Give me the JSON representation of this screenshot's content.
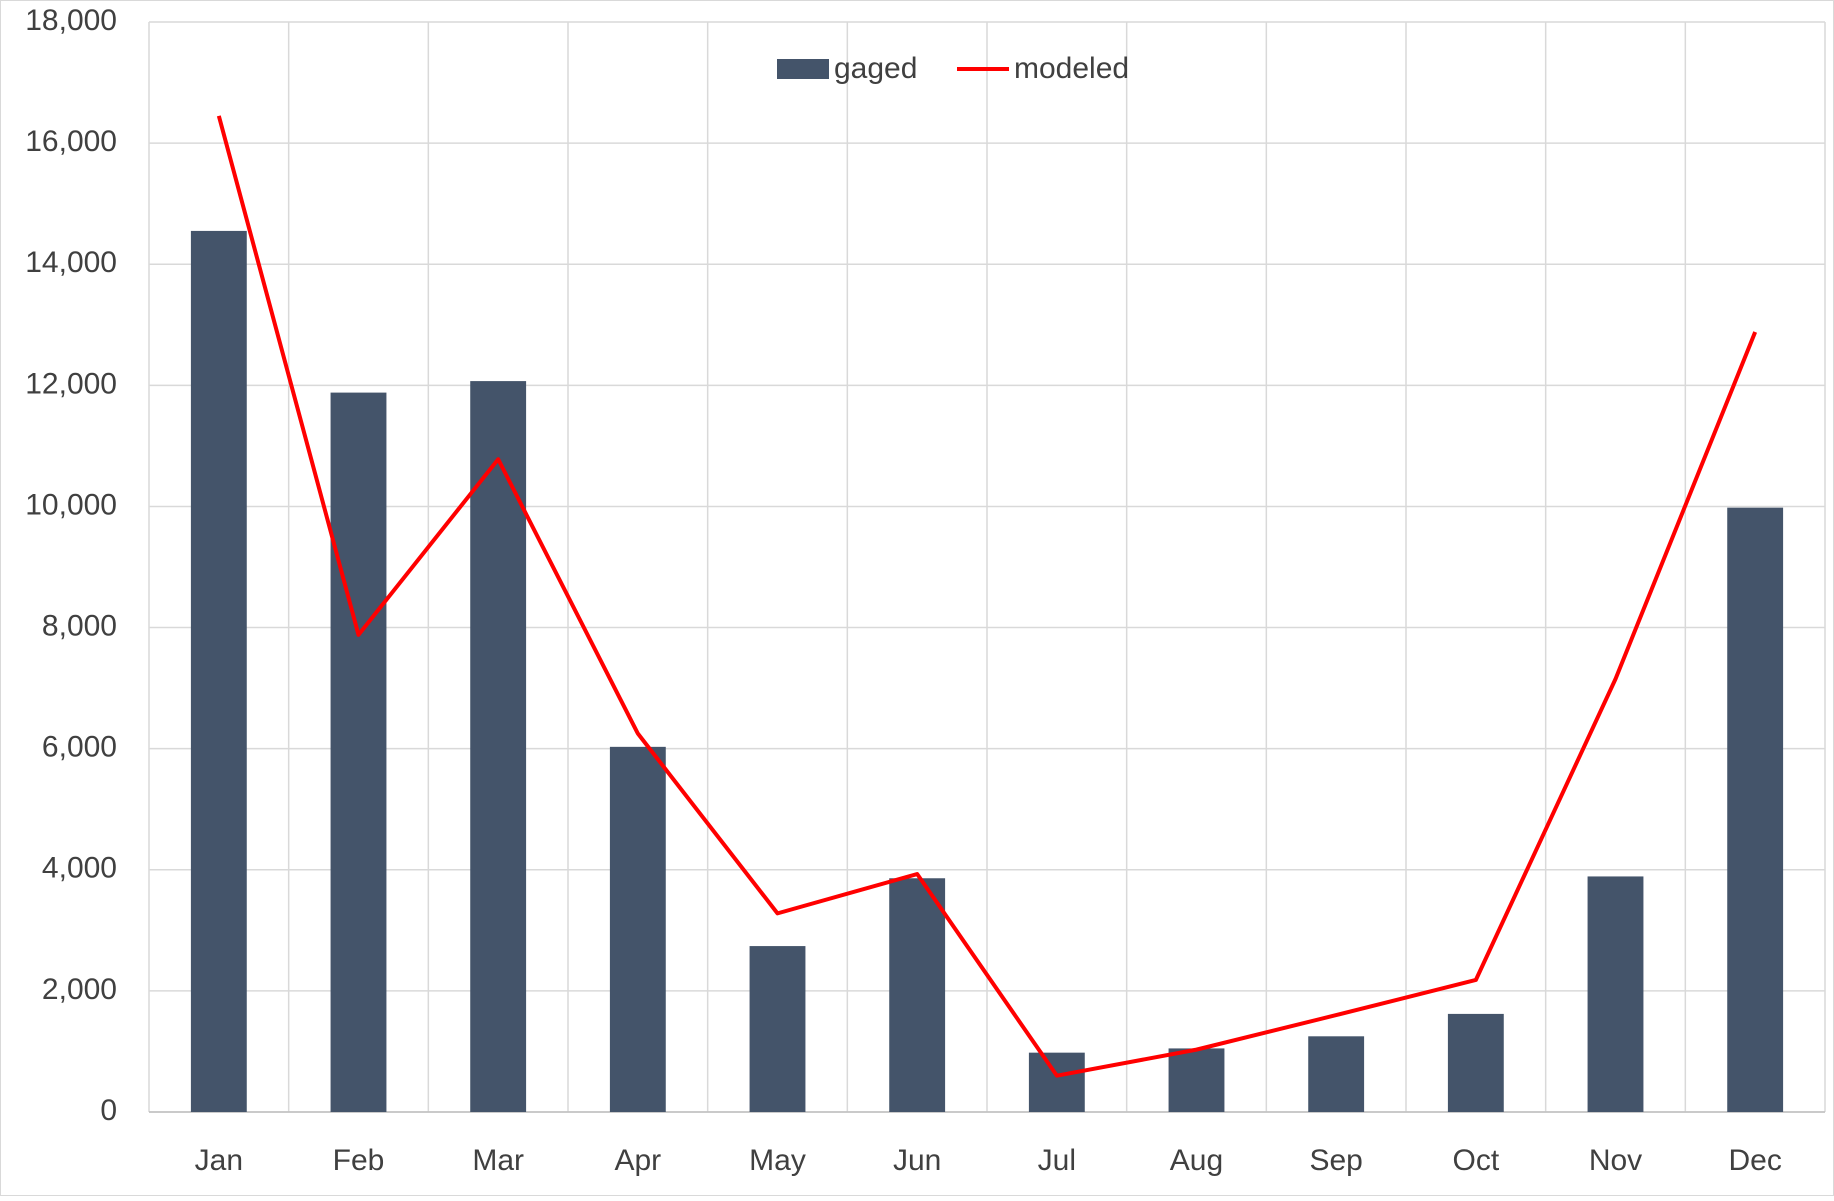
{
  "chart_data": {
    "type": "bar_line",
    "categories": [
      "Jan",
      "Feb",
      "Mar",
      "Apr",
      "May",
      "Jun",
      "Jul",
      "Aug",
      "Sep",
      "Oct",
      "Nov",
      "Dec"
    ],
    "series": [
      {
        "name": "gaged",
        "type": "bar",
        "color": "#44546a",
        "values": [
          14550,
          11880,
          12070,
          6030,
          2740,
          3860,
          980,
          1050,
          1250,
          1620,
          3890,
          9980
        ]
      },
      {
        "name": "modeled",
        "type": "line",
        "color": "#ff0000",
        "values": [
          16450,
          7880,
          10780,
          6250,
          3280,
          3930,
          600,
          1030,
          1600,
          2180,
          7150,
          12880
        ]
      }
    ],
    "ylim": [
      0,
      18000
    ],
    "yticks": [
      0,
      {
        "value": 2000,
        "label": "2,000"
      },
      {
        "value": 4000,
        "label": "4,000"
      },
      {
        "value": 6000,
        "label": "6,000"
      },
      {
        "value": 8000,
        "label": "8,000"
      },
      {
        "value": 10000,
        "label": "10,000"
      },
      {
        "value": 12000,
        "label": "12,000"
      },
      {
        "value": 14000,
        "label": "14,000"
      },
      {
        "value": 16000,
        "label": "16,000"
      },
      {
        "value": 18000,
        "label": "18,000"
      }
    ],
    "grid": true,
    "legend": "top"
  }
}
